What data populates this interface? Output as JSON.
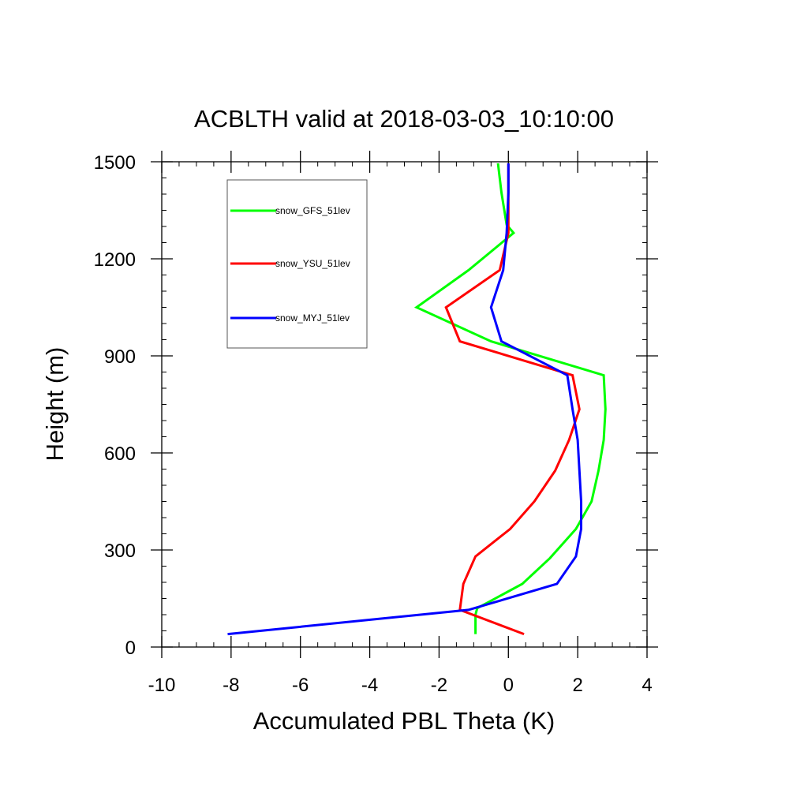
{
  "chart_data": {
    "type": "line",
    "title": "ACBLTH valid at 2018-03-03_10:10:00",
    "xlabel": "Accumulated PBL Theta (K)",
    "ylabel": "Height (m)",
    "xlim": [
      -10,
      4
    ],
    "ylim": [
      0,
      1500
    ],
    "x_ticks": [
      -10,
      -8,
      -6,
      -4,
      -2,
      0,
      2,
      4
    ],
    "y_ticks": [
      0,
      300,
      600,
      900,
      1200,
      1500
    ],
    "x_tick_labels": [
      "-10",
      "-8",
      "-6",
      "-4",
      "-2",
      "0",
      "2",
      "4"
    ],
    "y_tick_labels": [
      "0",
      "300",
      "600",
      "900",
      "1200",
      "1500"
    ],
    "grid": false,
    "legend_position": "top-left",
    "series": [
      {
        "name": "snow_GFS_51lev",
        "color": "#00ff00",
        "x": [
          -0.95,
          -0.95,
          -0.9,
          0.4,
          1.2,
          1.95,
          2.4,
          2.6,
          2.75,
          2.8,
          2.75,
          -0.5,
          -2.65,
          -1.15,
          0.15,
          -0.05,
          -0.2,
          -0.3
        ],
        "y": [
          40,
          100,
          120,
          195,
          275,
          365,
          450,
          545,
          640,
          735,
          840,
          945,
          1050,
          1165,
          1280,
          1305,
          1405,
          1495
        ]
      },
      {
        "name": "snow_YSU_51lev",
        "color": "#ff0000",
        "x": [
          0.45,
          -1.4,
          -1.3,
          -0.95,
          0.05,
          0.75,
          1.35,
          1.75,
          2.05,
          1.85,
          -1.4,
          -1.8,
          -0.25,
          0.0,
          0.0,
          0.0
        ],
        "y": [
          40,
          115,
          195,
          280,
          365,
          450,
          545,
          640,
          735,
          840,
          945,
          1050,
          1165,
          1280,
          1405,
          1495
        ]
      },
      {
        "name": "snow_MYJ_51lev",
        "color": "#0000ff",
        "x": [
          -8.1,
          -1.15,
          1.4,
          1.95,
          2.1,
          2.1,
          2.05,
          2.0,
          1.85,
          1.7,
          -0.2,
          -0.5,
          -0.15,
          -0.05,
          0.0,
          0.0
        ],
        "y": [
          40,
          115,
          195,
          280,
          365,
          450,
          545,
          640,
          735,
          840,
          945,
          1050,
          1165,
          1280,
          1405,
          1495
        ]
      }
    ]
  }
}
